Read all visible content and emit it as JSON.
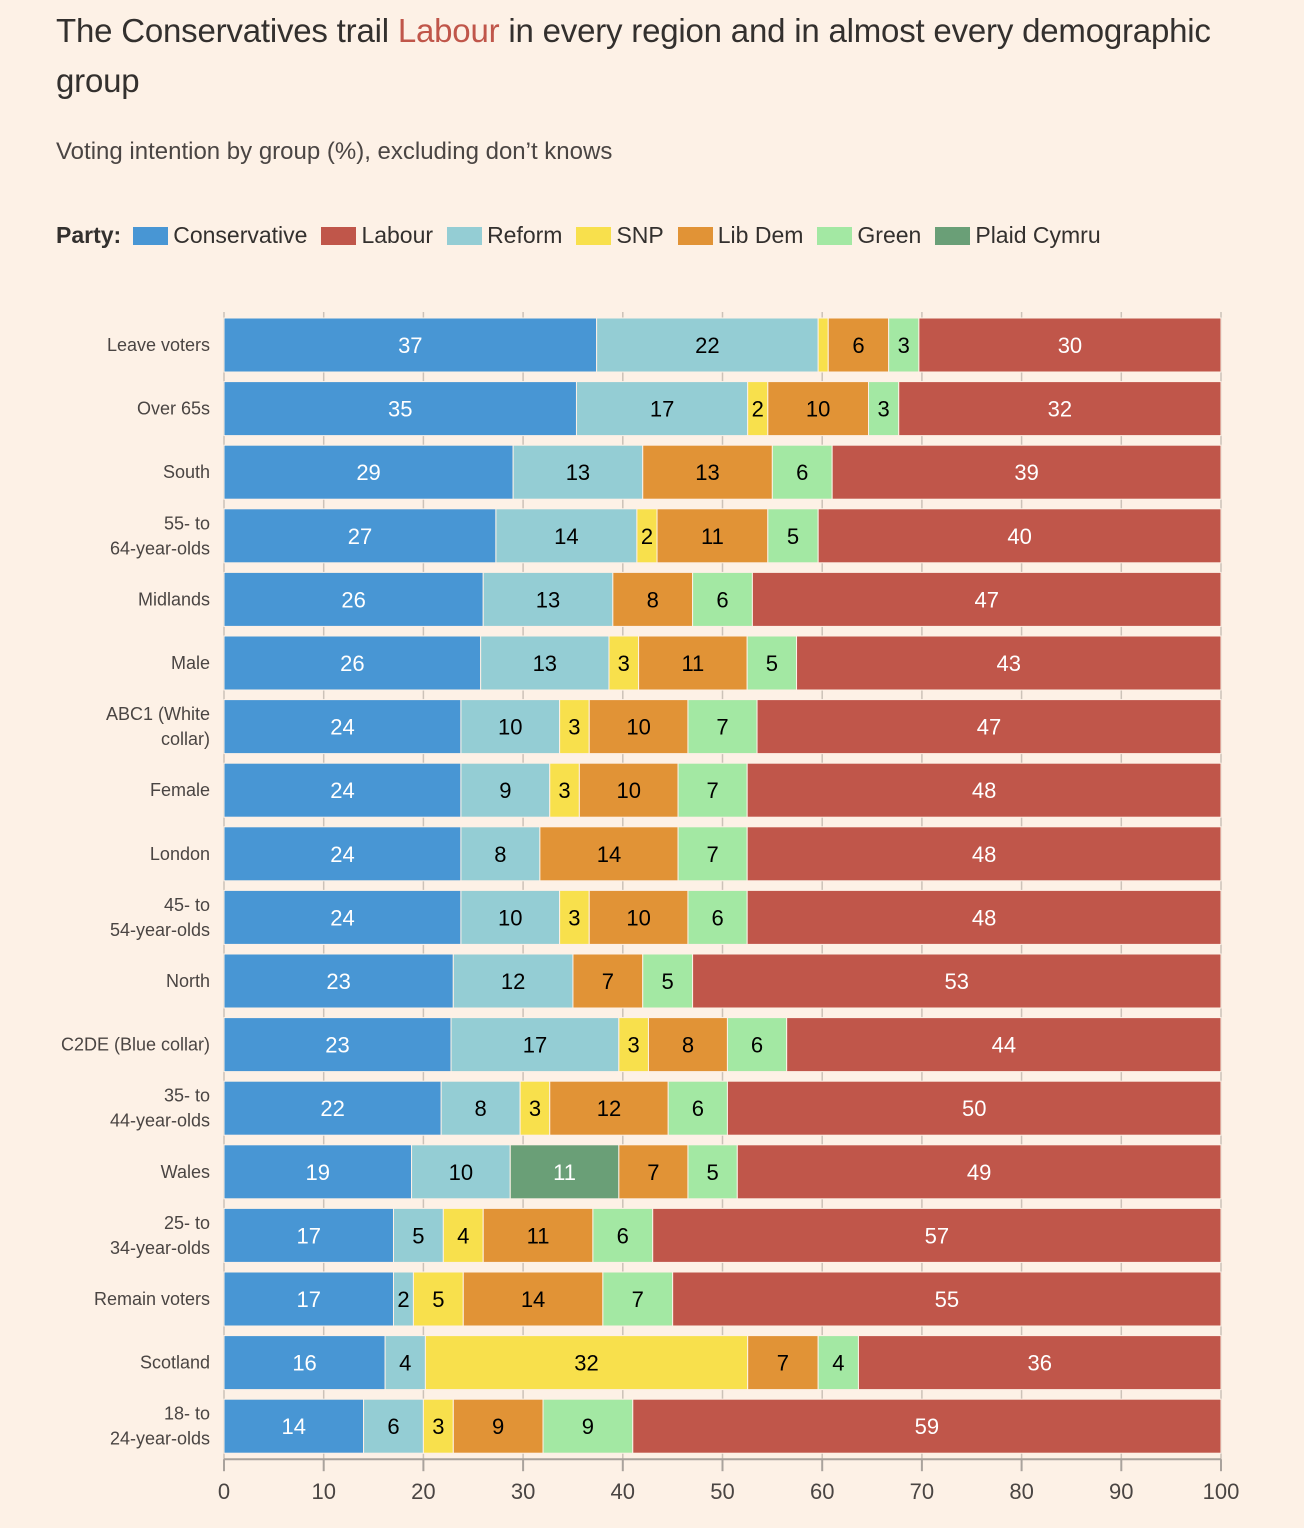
{
  "header": {
    "title_before": "The Conservatives trail ",
    "title_highlight": "Labour",
    "title_after": " in every region and in almost every demographic group",
    "subtitle": "Voting intention by group (%), excluding don’t knows"
  },
  "legend": {
    "label": "Party:",
    "items": [
      {
        "name": "Conservative",
        "color": "#4896d4"
      },
      {
        "name": "Labour",
        "color": "#c0564a"
      },
      {
        "name": "Reform",
        "color": "#94cdd4"
      },
      {
        "name": "SNP",
        "color": "#f8e04c"
      },
      {
        "name": "Lib Dem",
        "color": "#e19336"
      },
      {
        "name": "Green",
        "color": "#a3e8a3"
      },
      {
        "name": "Plaid Cymru",
        "color": "#6a9f77"
      }
    ]
  },
  "chart_data": {
    "type": "bar",
    "orientation": "horizontal",
    "stacked": true,
    "title": "The Conservatives trail Labour in every region and in almost every demographic group",
    "subtitle": "Voting intention by group (%), excluding don’t knows",
    "xlabel": "",
    "ylabel": "",
    "xlim": [
      0,
      100
    ],
    "xticks": [
      0,
      10,
      20,
      30,
      40,
      50,
      60,
      70,
      80,
      90,
      100
    ],
    "grid": true,
    "legend_position": "top-left",
    "stack_order": [
      "Conservative",
      "Reform",
      "SNP",
      "Plaid Cymru",
      "Lib Dem",
      "Green",
      "Labour"
    ],
    "colors": {
      "Conservative": "#4896d4",
      "Reform": "#94cdd4",
      "SNP": "#f8e04c",
      "Plaid Cymru": "#6a9f77",
      "Lib Dem": "#e19336",
      "Green": "#a3e8a3",
      "Labour": "#c0564a"
    },
    "label_colors": {
      "Conservative": "#ffffff",
      "Reform": "#000000",
      "SNP": "#000000",
      "Plaid Cymru": "#ffffff",
      "Lib Dem": "#000000",
      "Green": "#000000",
      "Labour": "#ffffff"
    },
    "categories": [
      "Leave voters",
      "Over 65s",
      "South",
      "55- to\n64-year-olds",
      "Midlands",
      "Male",
      "ABC1 (White\ncollar)",
      "Female",
      "London",
      "45- to\n54-year-olds",
      "North",
      "C2DE (Blue collar)",
      "35- to\n44-year-olds",
      "Wales",
      "25- to\n34-year-olds",
      "Remain voters",
      "Scotland",
      "18- to\n24-year-olds"
    ],
    "series": [
      {
        "name": "Conservative",
        "values": [
          37,
          35,
          29,
          27,
          26,
          26,
          24,
          24,
          24,
          24,
          23,
          23,
          22,
          19,
          17,
          17,
          16,
          14
        ]
      },
      {
        "name": "Reform",
        "values": [
          22,
          17,
          13,
          14,
          13,
          13,
          10,
          9,
          8,
          10,
          12,
          17,
          8,
          10,
          5,
          2,
          4,
          6
        ]
      },
      {
        "name": "SNP",
        "values": [
          1,
          2,
          0,
          2,
          0,
          3,
          3,
          3,
          0,
          3,
          0,
          3,
          3,
          0,
          4,
          5,
          32,
          3
        ]
      },
      {
        "name": "Plaid Cymru",
        "values": [
          0,
          0,
          0,
          0,
          0,
          0,
          0,
          0,
          0,
          0,
          0,
          0,
          0,
          11,
          0,
          0,
          0,
          0
        ]
      },
      {
        "name": "Lib Dem",
        "values": [
          6,
          10,
          13,
          11,
          8,
          11,
          10,
          10,
          14,
          10,
          7,
          8,
          12,
          7,
          11,
          14,
          7,
          9
        ]
      },
      {
        "name": "Green",
        "values": [
          3,
          3,
          6,
          5,
          6,
          5,
          7,
          7,
          7,
          6,
          5,
          6,
          6,
          5,
          6,
          7,
          4,
          9
        ]
      },
      {
        "name": "Labour",
        "values": [
          30,
          32,
          39,
          40,
          47,
          43,
          47,
          48,
          48,
          48,
          53,
          44,
          50,
          49,
          57,
          55,
          36,
          59
        ]
      }
    ],
    "unlabeled_segments": [
      {
        "category": "Leave voters",
        "series": "SNP",
        "value": 1
      }
    ]
  }
}
